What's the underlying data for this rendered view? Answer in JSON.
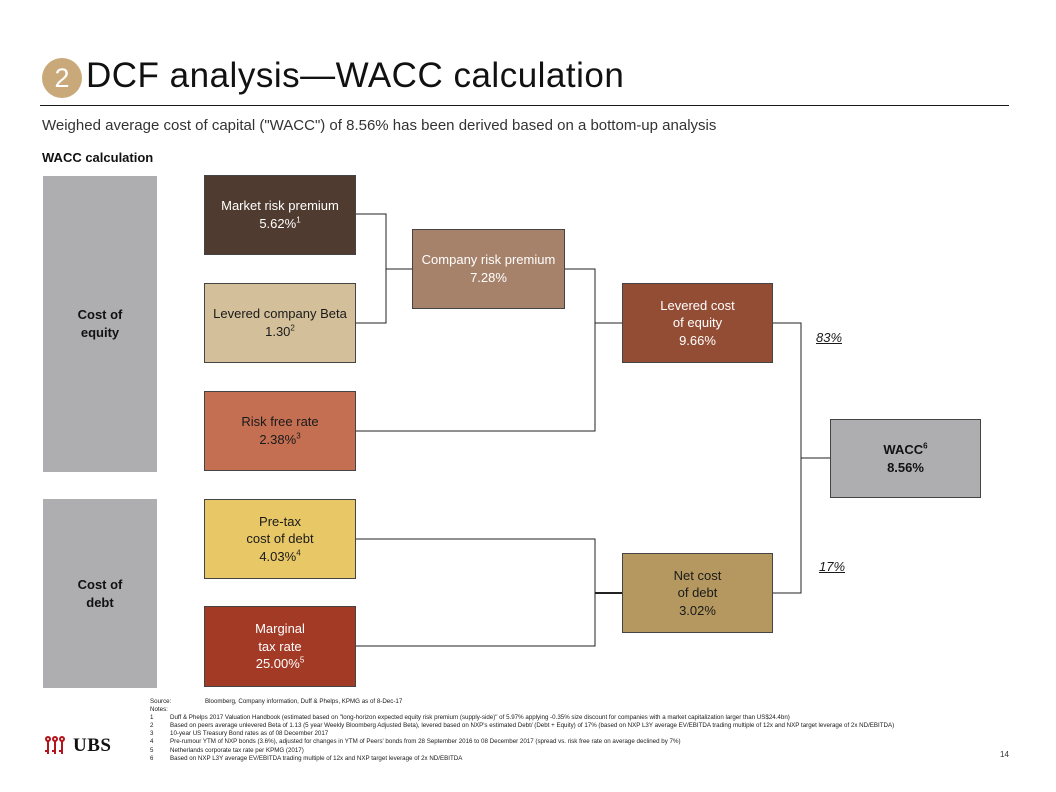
{
  "header": {
    "section_number": "2",
    "title": "DCF analysis—WACC calculation",
    "subtitle": "Weighed average cost of capital (\"WACC\") of 8.56% has been derived based on a bottom-up analysis",
    "section_label": "WACC calculation"
  },
  "sidebar": {
    "equity_label": "Cost of equity",
    "debt_label": "Cost of debt"
  },
  "nodes": {
    "market_risk_premium": {
      "label": "Market risk premium",
      "value": "5.62%",
      "note": "1",
      "color": "#4f3b2f",
      "text_color": "#ffffff"
    },
    "levered_beta": {
      "label": "Levered company Beta",
      "value": "1.30",
      "note": "2",
      "color": "#d3c09b",
      "text_color": "#1a1a1a"
    },
    "risk_free_rate": {
      "label": "Risk free rate",
      "value": "2.38%",
      "note": "3",
      "color": "#c46f52",
      "text_color": "#1a1a1a"
    },
    "company_risk_premium": {
      "label": "Company risk premium",
      "value": "7.28%",
      "color": "#a7826b",
      "text_color": "#ffffff"
    },
    "levered_cost_equity": {
      "label_line1": "Levered cost",
      "label_line2": "of equity",
      "value": "9.66%",
      "color": "#944d35",
      "text_color": "#ffffff"
    },
    "pretax_cost_debt": {
      "label_line1": "Pre-tax",
      "label_line2": "cost of debt",
      "value": "4.03%",
      "note": "4",
      "color": "#e8c767",
      "text_color": "#1a1a1a"
    },
    "marginal_tax_rate": {
      "label_line1": "Marginal",
      "label_line2": "tax rate",
      "value": "25.00%",
      "note": "5",
      "color": "#a33a26",
      "text_color": "#ffffff"
    },
    "net_cost_debt": {
      "label_line1": "Net cost",
      "label_line2": "of debt",
      "value": "3.02%",
      "color": "#b49860",
      "text_color": "#1a1a1a"
    },
    "wacc": {
      "label": "WACC",
      "value": "8.56%",
      "note": "6",
      "color": "#aeaeb1",
      "text_color": "#111111"
    }
  },
  "weights": {
    "equity": "83%",
    "debt": "17%"
  },
  "footnotes": {
    "source_key": "Source:",
    "source_text": "Bloomberg, Company information, Duff & Phelps, KPMG as of 8-Dec-17",
    "notes_key": "Notes:",
    "items": [
      {
        "n": "1",
        "text": "Duff & Phelps 2017 Valuation Handbook (estimated based on \"long-horizon expected equity risk premium (supply-side)\" of 5.97% applying -0.35% size discount for companies with a market capitalization larger than US$24.4bn)"
      },
      {
        "n": "2",
        "text": "Based on peers average unlevered Beta of 1.13 (5 year Weekly Bloomberg Adjusted Beta), levered based on NXP's estimated Debt/ (Debt + Equity) of 17% (based on NXP L3Y average EV/EBITDA trading multiple of 12x and NXP target leverage of 2x ND/EBITDA)"
      },
      {
        "n": "3",
        "text": "10-year US Treasury Bond rates as of 08 December 2017"
      },
      {
        "n": "4",
        "text": "Pre-rumour YTM of NXP bonds (3.6%), adjusted for changes in YTM of Peers' bonds from 28 September 2016 to 08 December 2017 (spread vs. risk free rate on average declined by 7%)"
      },
      {
        "n": "5",
        "text": "Netherlands corporate tax rate per KPMG (2017)"
      },
      {
        "n": "6",
        "text": "Based on NXP L3Y average EV/EBITDA trading multiple of 12x and NXP target leverage of 2x ND/EBITDA"
      }
    ]
  },
  "footer": {
    "logo_text": "UBS",
    "logo_icon": "ubs-keys-icon",
    "page_number": "14"
  }
}
